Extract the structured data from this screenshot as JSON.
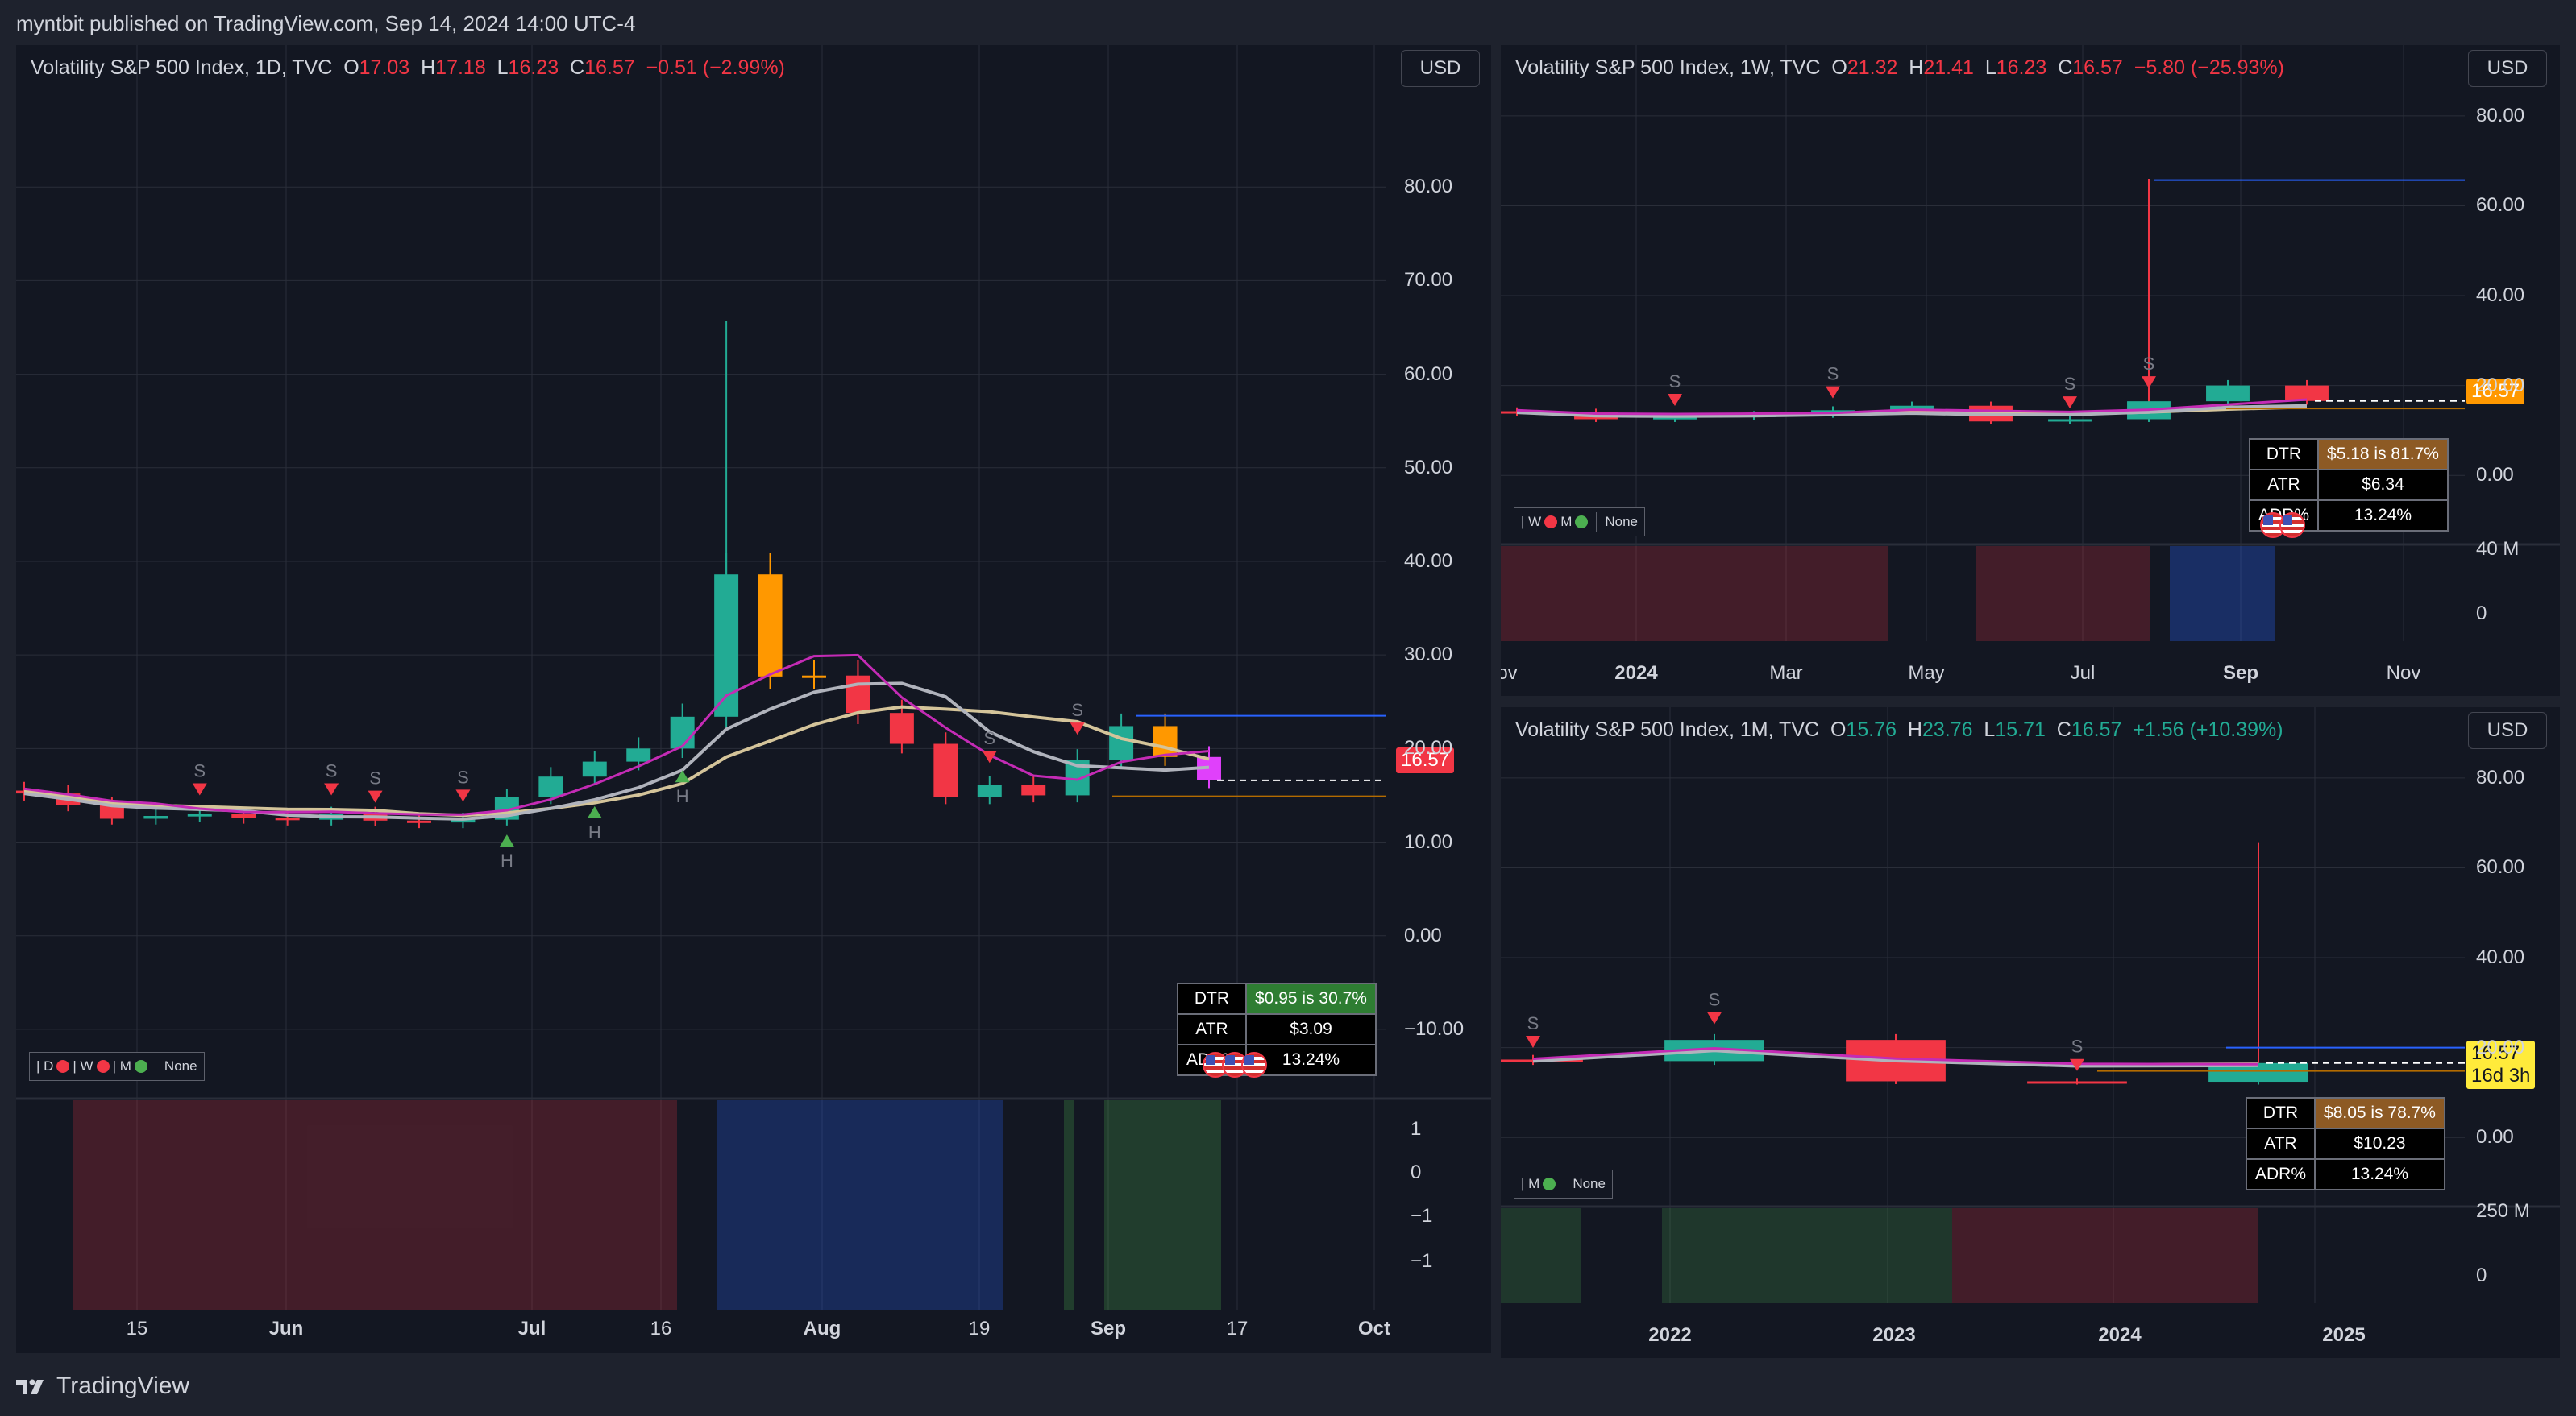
{
  "header": {
    "published": "myntbit published on TradingView.com, Sep 14, 2024 14:00 UTC-4"
  },
  "footer": {
    "brand": "TradingView"
  },
  "colors": {
    "bg": "#131722",
    "up": "#22ab94",
    "down": "#f23645",
    "orange": "#ff9800",
    "grid": "#2a2e39"
  },
  "panels": {
    "daily": {
      "title": "Volatility S&P 500 Index, 1D, TVC",
      "o_lbl": "O",
      "o": "17.03",
      "h_lbl": "H",
      "h": "17.18",
      "l_lbl": "L",
      "l": "16.23",
      "c_lbl": "C",
      "c": "16.57",
      "change": "−0.51 (−2.99%)",
      "currency": "USD",
      "price_tag": "16.57",
      "y_ticks": [
        "80.00",
        "70.00",
        "60.00",
        "50.00",
        "40.00",
        "30.00",
        "20.00",
        "10.00",
        "0.00",
        "−10.00"
      ],
      "osc_ticks": [
        "1",
        "0",
        "−1",
        "−1"
      ],
      "x_ticks": [
        "15",
        "Jun",
        "Jul",
        "16",
        "Aug",
        "19",
        "Sep",
        "17",
        "Oct"
      ],
      "legend": {
        "d": "| D",
        "w": "| W",
        "m": "| M",
        "none": "None"
      },
      "stats": {
        "dtr_k": "DTR",
        "dtr_v": "$0.95 is 30.7%",
        "atr_k": "ATR",
        "atr_v": "$3.09",
        "adr_k": "ADR%",
        "adr_v": "13.24%"
      },
      "marker_s": "S",
      "marker_h": "H"
    },
    "weekly": {
      "title": "Volatility S&P 500 Index, 1W, TVC",
      "o_lbl": "O",
      "o": "21.32",
      "h_lbl": "H",
      "h": "21.41",
      "l_lbl": "L",
      "l": "16.23",
      "c_lbl": "C",
      "c": "16.57",
      "change": "−5.80 (−25.93%)",
      "currency": "USD",
      "price_tag": "16.57",
      "y_ticks": [
        "80.00",
        "60.00",
        "40.00",
        "20.00",
        "0.00"
      ],
      "vol_ticks": [
        "40 M",
        "0"
      ],
      "x_ticks": [
        "ov",
        "2024",
        "Mar",
        "May",
        "Jul",
        "Sep",
        "Nov"
      ],
      "legend": {
        "w": "| W",
        "m": "M",
        "none": "None"
      },
      "stats": {
        "dtr_k": "DTR",
        "dtr_v": "$5.18 is 81.7%",
        "atr_k": "ATR",
        "atr_v": "$6.34",
        "adr_k": "ADR%",
        "adr_v": "13.24%"
      }
    },
    "monthly": {
      "title": "Volatility S&P 500 Index, 1M, TVC",
      "o_lbl": "O",
      "o": "15.76",
      "h_lbl": "H",
      "h": "23.76",
      "l_lbl": "L",
      "l": "15.71",
      "c_lbl": "C",
      "c": "16.57",
      "change": "+1.56 (+10.39%)",
      "currency": "USD",
      "price_tag": "16.57",
      "countdown": "16d 3h",
      "y_ticks": [
        "80.00",
        "60.00",
        "40.00",
        "20.00",
        "0.00"
      ],
      "vol_ticks": [
        "250 M",
        "0"
      ],
      "x_ticks": [
        "2022",
        "2023",
        "2024",
        "2025"
      ],
      "legend": {
        "m": "| M",
        "none": "None"
      },
      "stats": {
        "dtr_k": "DTR",
        "dtr_v": "$8.05 is 78.7%",
        "atr_k": "ATR",
        "atr_v": "$10.23",
        "adr_k": "ADR%",
        "adr_v": "13.24%"
      }
    }
  },
  "chart_data": [
    {
      "type": "candlestick",
      "title": "Volatility S&P 500 Index, 1D, TVC",
      "x": [
        "2024-05-01",
        "2024-05-08",
        "2024-05-15",
        "2024-05-22",
        "2024-05-29",
        "2024-06-05",
        "2024-06-12",
        "2024-06-19",
        "2024-06-26",
        "2024-07-03",
        "2024-07-10",
        "2024-07-17",
        "2024-07-24",
        "2024-07-31",
        "2024-08-01",
        "2024-08-02",
        "2024-08-05",
        "2024-08-06",
        "2024-08-07",
        "2024-08-08",
        "2024-08-12",
        "2024-08-16",
        "2024-08-23",
        "2024-08-30",
        "2024-09-04",
        "2024-09-06",
        "2024-09-10",
        "2024-09-13"
      ],
      "close": [
        15.2,
        14.0,
        12.5,
        12.8,
        13.0,
        12.6,
        12.4,
        13.0,
        12.3,
        12.1,
        12.4,
        14.8,
        17.0,
        18.6,
        20.0,
        23.4,
        38.6,
        27.7,
        27.8,
        23.8,
        20.5,
        14.8,
        16.1,
        15.0,
        18.8,
        22.4,
        19.1,
        16.6
      ],
      "ylim": [
        -15,
        90
      ]
    },
    {
      "type": "candlestick",
      "title": "Volatility S&P 500 Index, 1W, TVC",
      "x": [
        "2023-11",
        "2023-12",
        "2024-01",
        "2024-02",
        "2024-03",
        "2024-04",
        "2024-05",
        "2024-06",
        "2024-07",
        "2024-08",
        "2024-09"
      ],
      "close": [
        14.0,
        12.5,
        13.0,
        13.5,
        14.5,
        15.5,
        12.0,
        12.5,
        16.5,
        20.0,
        16.57
      ],
      "ylim": [
        -10,
        85
      ]
    },
    {
      "type": "candlestick",
      "title": "Volatility S&P 500 Index, 1M, TVC",
      "x": [
        "2021",
        "2022",
        "2023",
        "2024",
        "2024-09"
      ],
      "close": [
        17.0,
        21.7,
        12.5,
        12.4,
        16.57
      ],
      "ylim": [
        -10,
        85
      ]
    }
  ]
}
